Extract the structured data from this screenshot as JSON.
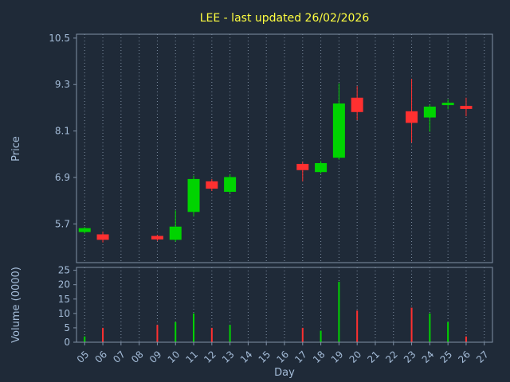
{
  "chart_data": {
    "type": "candlestick",
    "title": "LEE - last updated 26/02/2026",
    "xlabel": "Day",
    "grid": {
      "vertical_dotted": true,
      "horizontal": false
    },
    "x_axis": {
      "ticks": [
        "05",
        "06",
        "07",
        "08",
        "09",
        "10",
        "11",
        "12",
        "13",
        "14",
        "15",
        "16",
        "17",
        "18",
        "19",
        "20",
        "21",
        "22",
        "23",
        "24",
        "25",
        "26",
        "27"
      ],
      "first_day": 5,
      "range": [
        4.55,
        27.45
      ]
    },
    "price_axis": {
      "label": "Price",
      "ticks": [
        10.5,
        9.3,
        8.1,
        6.9,
        5.7
      ],
      "range": [
        4.7,
        10.6
      ]
    },
    "volume_axis": {
      "label": "Volume (0000)",
      "ticks": [
        25,
        20,
        15,
        10,
        5,
        0
      ],
      "range": [
        0,
        26
      ]
    },
    "candles": [
      {
        "day": 5,
        "open": 5.5,
        "high": 5.62,
        "low": 5.45,
        "close": 5.58
      },
      {
        "day": 6,
        "open": 5.42,
        "high": 5.5,
        "low": 5.22,
        "close": 5.3
      },
      {
        "day": 9,
        "open": 5.38,
        "high": 5.42,
        "low": 5.26,
        "close": 5.31
      },
      {
        "day": 10,
        "open": 5.3,
        "high": 6.05,
        "low": 5.24,
        "close": 5.62
      },
      {
        "day": 11,
        "open": 6.02,
        "high": 6.95,
        "low": 5.9,
        "close": 6.85
      },
      {
        "day": 12,
        "open": 6.79,
        "high": 6.86,
        "low": 6.55,
        "close": 6.62
      },
      {
        "day": 13,
        "open": 6.54,
        "high": 6.98,
        "low": 6.48,
        "close": 6.9
      },
      {
        "day": 17,
        "open": 7.24,
        "high": 7.3,
        "low": 6.8,
        "close": 7.1
      },
      {
        "day": 18,
        "open": 7.05,
        "high": 7.32,
        "low": 7.0,
        "close": 7.26
      },
      {
        "day": 19,
        "open": 7.42,
        "high": 9.33,
        "low": 7.36,
        "close": 8.8
      },
      {
        "day": 20,
        "open": 8.95,
        "high": 9.26,
        "low": 8.38,
        "close": 8.6
      },
      {
        "day": 23,
        "open": 8.6,
        "high": 9.45,
        "low": 7.8,
        "close": 8.32
      },
      {
        "day": 24,
        "open": 8.46,
        "high": 8.78,
        "low": 8.08,
        "close": 8.72
      },
      {
        "day": 25,
        "open": 8.78,
        "high": 8.92,
        "low": 8.66,
        "close": 8.82
      },
      {
        "day": 26,
        "open": 8.74,
        "high": 8.96,
        "low": 8.48,
        "close": 8.68
      }
    ],
    "volume_bars": [
      {
        "day": 5,
        "value": 2,
        "direction": "up"
      },
      {
        "day": 6,
        "value": 5,
        "direction": "down"
      },
      {
        "day": 9,
        "value": 6,
        "direction": "down"
      },
      {
        "day": 10,
        "value": 7,
        "direction": "up"
      },
      {
        "day": 11,
        "value": 10,
        "direction": "up"
      },
      {
        "day": 12,
        "value": 5,
        "direction": "down"
      },
      {
        "day": 13,
        "value": 6,
        "direction": "up"
      },
      {
        "day": 17,
        "value": 5,
        "direction": "down"
      },
      {
        "day": 18,
        "value": 4,
        "direction": "up"
      },
      {
        "day": 19,
        "value": 21,
        "direction": "up"
      },
      {
        "day": 20,
        "value": 11,
        "direction": "down"
      },
      {
        "day": 23,
        "value": 12,
        "direction": "down"
      },
      {
        "day": 24,
        "value": 10,
        "direction": "up"
      },
      {
        "day": 25,
        "value": 7,
        "direction": "up"
      },
      {
        "day": 26,
        "value": 2,
        "direction": "down"
      }
    ],
    "colors": {
      "background": "#1f2a38",
      "up": "#00d400",
      "down": "#ff3030",
      "title": "#ffff40",
      "tick_label": "#a4bcd8",
      "axis_label": "#a4bcd8",
      "grid": "#7c8ca0",
      "border": "#8091a6"
    }
  }
}
